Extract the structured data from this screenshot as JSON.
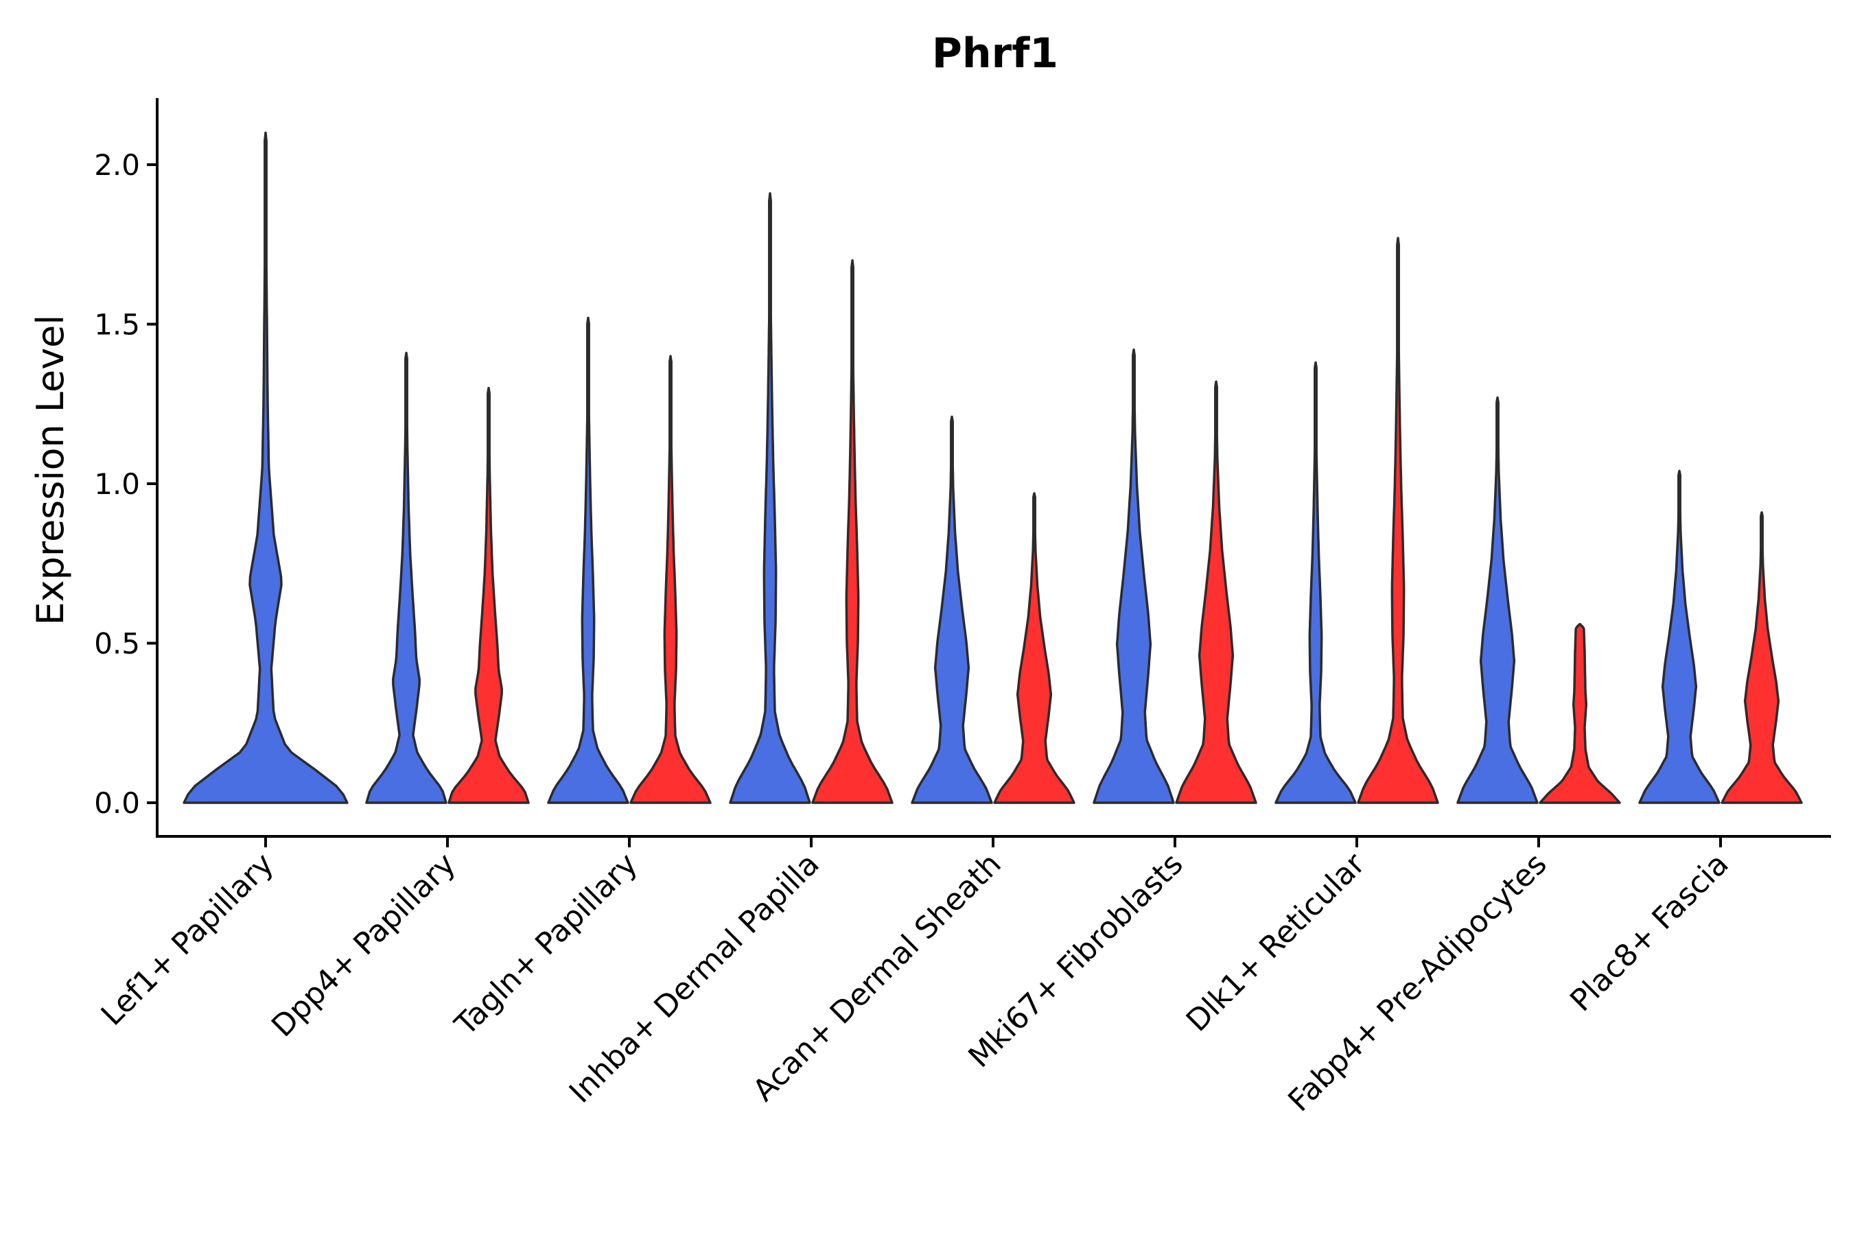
{
  "chart_data": {
    "type": "violin",
    "title": "Phrf1",
    "xlabel": "",
    "ylabel": "Expression Level",
    "ylim": [
      -0.1,
      2.2
    ],
    "yticks": [
      0.0,
      0.5,
      1.0,
      1.5,
      2.0
    ],
    "ytick_labels": [
      "0.0",
      "0.5",
      "1.0",
      "1.5",
      "2.0"
    ],
    "colors": {
      "blue": "#4A6FE3",
      "red": "#FF3030"
    },
    "categories": [
      "Lef1+ Papillary",
      "Dpp4+ Papillary",
      "Tagln+ Papillary",
      "Inhba+ Dermal Papilla",
      "Acan+ Dermal Sheath",
      "Mki67+ Fibroblasts",
      "Dlk1+ Reticular",
      "Fabp4+ Pre-Adipocytes",
      "Plac8+ Fascia"
    ],
    "series": [
      {
        "name": "blue",
        "max": [
          2.1,
          1.41,
          1.52,
          1.91,
          1.21,
          1.42,
          1.38,
          1.27,
          1.04
        ]
      },
      {
        "name": "red",
        "max": [
          null,
          1.3,
          1.4,
          1.7,
          0.97,
          1.32,
          1.77,
          0.56,
          0.91
        ]
      }
    ],
    "legend": "none"
  }
}
